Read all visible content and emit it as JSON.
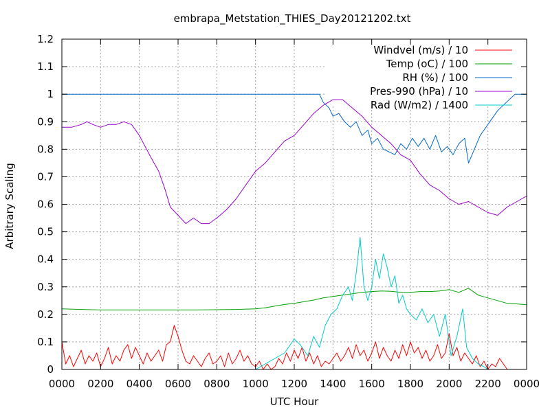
{
  "chart_data": {
    "type": "line",
    "title": "embrapa_Metstation_THIES_Day20121202.txt",
    "xlabel": "UTC Hour",
    "ylabel": "Arbitrary Scaling",
    "xlim": [
      0,
      24
    ],
    "ylim": [
      0,
      1.2
    ],
    "grid": true,
    "legend_position": "top-right",
    "x_tick_labels": [
      "0000",
      "0200",
      "0400",
      "0600",
      "0800",
      "1000",
      "1200",
      "1400",
      "1600",
      "1800",
      "2000",
      "2200",
      "0000"
    ],
    "y_tick_labels": [
      "0",
      "0.1",
      "0.2",
      "0.3",
      "0.4",
      "0.5",
      "0.6",
      "0.7",
      "0.8",
      "0.9",
      "1",
      "1.1",
      "1.2"
    ],
    "series": [
      {
        "name": "Windvel (m/s) / 10",
        "color": "#ff0000",
        "x": [
          0,
          0.2,
          0.4,
          0.6,
          0.8,
          1.0,
          1.2,
          1.4,
          1.6,
          1.8,
          2.0,
          2.2,
          2.4,
          2.6,
          2.8,
          3.0,
          3.2,
          3.4,
          3.6,
          3.8,
          4.0,
          4.2,
          4.4,
          4.6,
          4.8,
          5.0,
          5.2,
          5.4,
          5.6,
          5.8,
          6.0,
          6.2,
          6.4,
          6.6,
          6.8,
          7.0,
          7.2,
          7.4,
          7.6,
          7.8,
          8.0,
          8.2,
          8.4,
          8.6,
          8.8,
          9.0,
          9.2,
          9.4,
          9.6,
          9.8,
          10.0,
          10.2,
          10.4,
          10.6,
          10.8,
          11.0,
          11.2,
          11.4,
          11.6,
          11.8,
          12.0,
          12.2,
          12.4,
          12.6,
          12.8,
          13.0,
          13.2,
          13.4,
          13.6,
          13.8,
          14.0,
          14.2,
          14.4,
          14.6,
          14.8,
          15.0,
          15.2,
          15.4,
          15.6,
          15.8,
          16.0,
          16.2,
          16.4,
          16.6,
          16.8,
          17.0,
          17.2,
          17.4,
          17.6,
          17.8,
          18.0,
          18.2,
          18.4,
          18.6,
          18.8,
          19.0,
          19.2,
          19.4,
          19.6,
          19.8,
          20.0,
          20.2,
          20.4,
          20.6,
          20.8,
          21.0,
          21.2,
          21.4,
          21.6,
          21.8,
          22.0,
          22.2,
          22.4,
          22.6,
          22.8,
          23.0,
          23.2
        ],
        "values": [
          0.1,
          0.02,
          0.05,
          0.01,
          0.04,
          0.07,
          0.02,
          0.05,
          0.03,
          0.06,
          0.01,
          0.04,
          0.08,
          0.02,
          0.05,
          0.03,
          0.07,
          0.09,
          0.04,
          0.08,
          0.05,
          0.02,
          0.06,
          0.03,
          0.05,
          0.07,
          0.03,
          0.09,
          0.1,
          0.16,
          0.12,
          0.07,
          0.03,
          0.02,
          0.05,
          0.03,
          0.01,
          0.04,
          0.06,
          0.02,
          0.03,
          0.05,
          0.01,
          0.06,
          0.02,
          0.04,
          0.07,
          0.03,
          0.05,
          0.02,
          0.01,
          0.03,
          0.0,
          0.02,
          0.0,
          0.01,
          0.04,
          0.02,
          0.06,
          0.03,
          0.07,
          0.04,
          0.08,
          0.03,
          0.06,
          0.02,
          0.05,
          0.01,
          0.03,
          0.02,
          0.04,
          0.06,
          0.03,
          0.05,
          0.08,
          0.04,
          0.09,
          0.05,
          0.07,
          0.03,
          0.06,
          0.1,
          0.04,
          0.08,
          0.05,
          0.03,
          0.07,
          0.04,
          0.09,
          0.05,
          0.1,
          0.06,
          0.08,
          0.04,
          0.07,
          0.03,
          0.05,
          0.09,
          0.04,
          0.06,
          0.13,
          0.05,
          0.08,
          0.03,
          0.06,
          0.04,
          0.02,
          0.05,
          0.01,
          0.03,
          0.0,
          0.02,
          0.01,
          0.04,
          0.02,
          0.0,
          0.0
        ]
      },
      {
        "name": "Temp (oC) / 100",
        "color": "#00a000",
        "x": [
          0,
          1,
          2,
          3,
          4,
          5,
          6,
          7,
          8,
          9,
          10,
          10.5,
          11,
          11.5,
          12,
          12.5,
          13,
          13.5,
          14,
          14.5,
          15,
          15.5,
          16,
          16.5,
          17,
          17.5,
          18,
          18.5,
          19,
          19.5,
          20,
          20.5,
          21,
          21.5,
          22,
          22.5,
          23,
          23.5,
          24
        ],
        "values": [
          0.22,
          0.218,
          0.216,
          0.216,
          0.216,
          0.216,
          0.216,
          0.216,
          0.217,
          0.218,
          0.22,
          0.224,
          0.23,
          0.236,
          0.24,
          0.246,
          0.252,
          0.26,
          0.265,
          0.27,
          0.275,
          0.28,
          0.283,
          0.285,
          0.284,
          0.28,
          0.28,
          0.283,
          0.283,
          0.285,
          0.29,
          0.28,
          0.295,
          0.27,
          0.26,
          0.25,
          0.24,
          0.238,
          0.235
        ]
      },
      {
        "name": "RH (%) / 100",
        "color": "#0066cc",
        "x": [
          0,
          13.3,
          13.5,
          13.8,
          14.0,
          14.3,
          14.6,
          14.9,
          15.2,
          15.5,
          15.8,
          16.0,
          16.3,
          16.6,
          16.9,
          17.2,
          17.5,
          17.8,
          18.1,
          18.4,
          18.7,
          19.0,
          19.3,
          19.6,
          19.9,
          20.2,
          20.5,
          20.8,
          21.0,
          21.3,
          21.6,
          21.9,
          22.2,
          22.5,
          22.8,
          23.1,
          23.4,
          24
        ],
        "values": [
          1.0,
          1.0,
          0.97,
          0.95,
          0.92,
          0.93,
          0.9,
          0.88,
          0.9,
          0.85,
          0.87,
          0.82,
          0.84,
          0.8,
          0.79,
          0.78,
          0.82,
          0.8,
          0.84,
          0.81,
          0.84,
          0.8,
          0.85,
          0.79,
          0.81,
          0.78,
          0.82,
          0.84,
          0.75,
          0.8,
          0.85,
          0.88,
          0.91,
          0.94,
          0.96,
          0.98,
          1.0,
          1.0
        ]
      },
      {
        "name": "Pres-990 (hPa) / 10",
        "color": "#9900cc",
        "x": [
          0,
          0.5,
          1.0,
          1.3,
          1.6,
          2.0,
          2.4,
          2.8,
          3.2,
          3.6,
          4.0,
          4.3,
          4.6,
          5.0,
          5.3,
          5.6,
          6.0,
          6.4,
          6.8,
          7.2,
          7.6,
          8.0,
          8.5,
          9.0,
          9.5,
          10.0,
          10.5,
          11.0,
          11.5,
          12.0,
          12.5,
          13.0,
          13.5,
          14.0,
          14.5,
          15.0,
          15.5,
          16.0,
          16.5,
          17.0,
          17.5,
          18.0,
          18.5,
          19.0,
          19.5,
          20.0,
          20.5,
          21.0,
          21.5,
          22.0,
          22.5,
          23.0,
          23.5,
          24.0
        ],
        "values": [
          0.88,
          0.88,
          0.89,
          0.9,
          0.89,
          0.88,
          0.89,
          0.89,
          0.9,
          0.89,
          0.85,
          0.81,
          0.77,
          0.72,
          0.66,
          0.59,
          0.56,
          0.53,
          0.55,
          0.53,
          0.53,
          0.55,
          0.58,
          0.62,
          0.67,
          0.72,
          0.75,
          0.79,
          0.83,
          0.85,
          0.89,
          0.93,
          0.96,
          0.98,
          0.98,
          0.95,
          0.92,
          0.88,
          0.85,
          0.82,
          0.78,
          0.76,
          0.71,
          0.67,
          0.65,
          0.62,
          0.6,
          0.61,
          0.59,
          0.57,
          0.56,
          0.59,
          0.61,
          0.63
        ]
      },
      {
        "name": "Rad (W/m2) / 1400",
        "color": "#00cccc",
        "x": [
          0,
          10.0,
          10.5,
          11.0,
          11.5,
          12.0,
          12.3,
          12.7,
          13.0,
          13.3,
          13.6,
          13.9,
          14.2,
          14.5,
          14.8,
          15.0,
          15.2,
          15.4,
          15.6,
          15.8,
          16.0,
          16.2,
          16.4,
          16.6,
          16.8,
          17.0,
          17.2,
          17.4,
          17.6,
          17.8,
          18.0,
          18.3,
          18.6,
          18.9,
          19.2,
          19.5,
          19.8,
          20.1,
          20.4,
          20.7,
          20.9,
          21.2,
          21.5,
          21.8,
          22.0,
          24
        ],
        "values": [
          0.0,
          0.0,
          0.02,
          0.04,
          0.06,
          0.11,
          0.09,
          0.05,
          0.12,
          0.08,
          0.16,
          0.2,
          0.22,
          0.27,
          0.3,
          0.25,
          0.35,
          0.48,
          0.3,
          0.25,
          0.3,
          0.4,
          0.33,
          0.42,
          0.37,
          0.3,
          0.34,
          0.24,
          0.27,
          0.22,
          0.2,
          0.18,
          0.22,
          0.17,
          0.2,
          0.12,
          0.2,
          0.05,
          0.12,
          0.22,
          0.08,
          0.04,
          0.02,
          0.01,
          0.0,
          0.0
        ]
      }
    ]
  }
}
